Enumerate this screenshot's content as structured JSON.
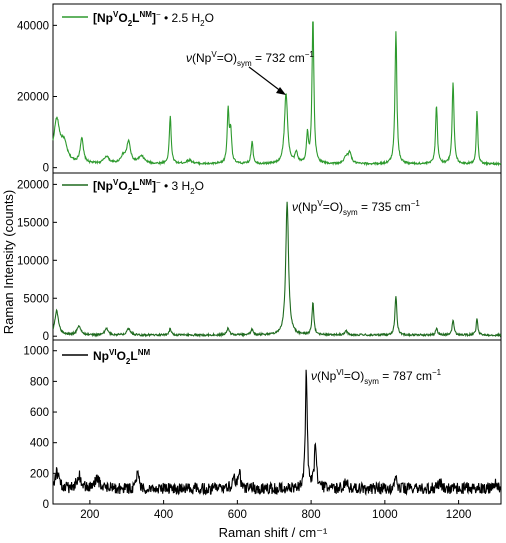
{
  "colors": {
    "dark_green": "#1f6a1f",
    "bright_green": "#2e9a2e",
    "black": "#000000"
  },
  "chart_data": {
    "type": "line",
    "xlabel": "Raman shift / cm⁻¹",
    "ylabel": "Raman Intensity (counts)",
    "xlim": [
      100,
      1315
    ],
    "xticks": [
      "200",
      "400",
      "600",
      "800",
      "1000",
      "1200"
    ],
    "panels": [
      {
        "id": "top",
        "ylim": [
          -1500,
          46000
        ],
        "yticks": [
          "0",
          "20000",
          "40000"
        ],
        "legend": {
          "formula": "[NpVO2LNM]− • 2.5 H2O"
        },
        "annotation": {
          "text": "ν(NpV=O)sym = 732 cm⁻¹"
        },
        "series": [
          {
            "color": "#2e9a2e",
            "baseline": 1000,
            "peaks": [
              [
                110,
                12000,
                10
              ],
              [
                130,
                5000,
                10
              ],
              [
                178,
                7000,
                5
              ],
              [
                245,
                2000,
                8
              ],
              [
                290,
                2000,
                8
              ],
              [
                305,
                6000,
                6
              ],
              [
                340,
                2000,
                10
              ],
              [
                418,
                13500,
                3
              ],
              [
                470,
                1000,
                10
              ],
              [
                575,
                15000,
                3
              ],
              [
                582,
                9000,
                3
              ],
              [
                640,
                6500,
                3
              ],
              [
                732,
                20000,
                5
              ],
              [
                760,
                3000,
                4
              ],
              [
                790,
                8000,
                3
              ],
              [
                805,
                41000,
                3
              ],
              [
                895,
                2000,
                6
              ],
              [
                905,
                3000,
                5
              ],
              [
                1030,
                37500,
                3
              ],
              [
                1140,
                16500,
                3
              ],
              [
                1185,
                23000,
                3
              ],
              [
                1250,
                15000,
                2.5
              ]
            ]
          }
        ]
      },
      {
        "id": "middle",
        "ylim": [
          -500,
          21500
        ],
        "yticks": [
          "0",
          "5000",
          "10000",
          "15000",
          "20000"
        ],
        "legend": {
          "formula": "[NpVO2LNM]− • 3 H2O"
        },
        "annotation": {
          "text": "ν(NpV=O)sym = 735 cm⁻¹"
        },
        "series": [
          {
            "color": "#1f6a1f",
            "baseline": 150,
            "peaks": [
              [
                110,
                3200,
                6
              ],
              [
                170,
                1200,
                6
              ],
              [
                245,
                900,
                5
              ],
              [
                305,
                900,
                6
              ],
              [
                418,
                900,
                3
              ],
              [
                575,
                900,
                4
              ],
              [
                640,
                700,
                4
              ],
              [
                735,
                17500,
                4.5
              ],
              [
                805,
                4200,
                3
              ],
              [
                895,
                500,
                5
              ],
              [
                1030,
                5200,
                3
              ],
              [
                1140,
                900,
                3
              ],
              [
                1185,
                2000,
                3
              ],
              [
                1250,
                2200,
                2.5
              ]
            ]
          }
        ]
      },
      {
        "id": "bottom",
        "ylim": [
          0,
          1070
        ],
        "yticks": [
          "0",
          "200",
          "400",
          "600",
          "800",
          "1000"
        ],
        "legend": {
          "formula": "NpVIO2LNM"
        },
        "annotation": {
          "text": "ν(NpVI=O)sym = 787 cm⁻¹"
        },
        "series": [
          {
            "color": "#000000",
            "baseline": 100,
            "peaks": [
              [
                110,
                110,
                6
              ],
              [
                170,
                90,
                6
              ],
              [
                220,
                60,
                8
              ],
              [
                330,
                130,
                3
              ],
              [
                590,
                100,
                4
              ],
              [
                605,
                110,
                4
              ],
              [
                787,
                770,
                3
              ],
              [
                812,
                290,
                3.5
              ],
              [
                895,
                40,
                5
              ],
              [
                1030,
                70,
                3
              ],
              [
                1150,
                40,
                5
              ],
              [
                1300,
                40,
                6
              ]
            ]
          }
        ]
      }
    ]
  }
}
